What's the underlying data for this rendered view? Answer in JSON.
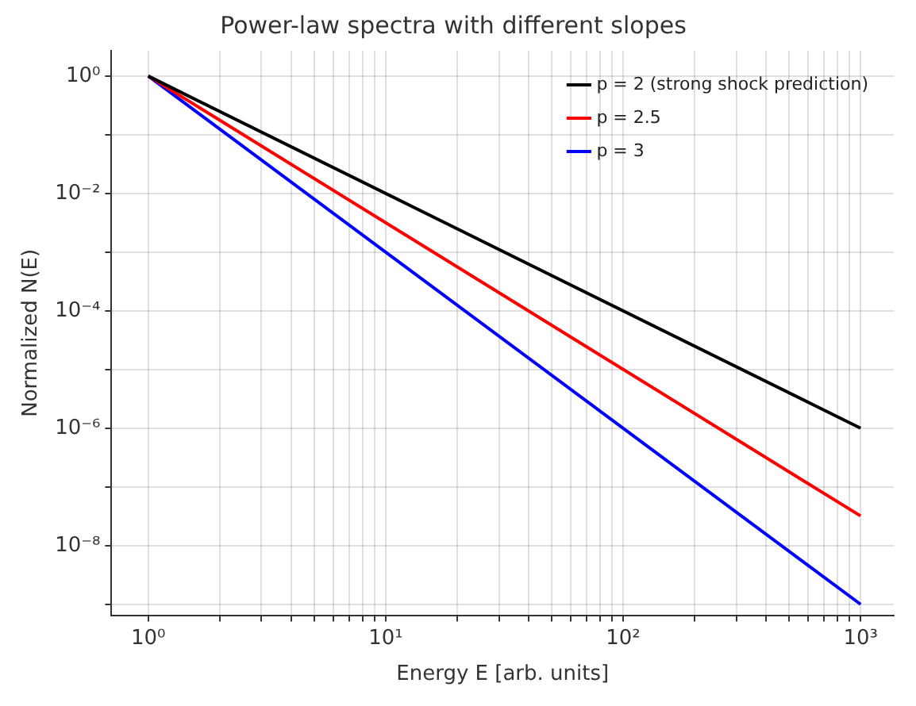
{
  "chart_data": {
    "type": "line",
    "title": "Power-law spectra with different slopes",
    "xlabel": "Energy E [arb. units]",
    "ylabel": "Normalized N(E)",
    "log": "xy",
    "grid": true,
    "legend": "top right",
    "marker": "none",
    "line_style": "solid",
    "xlim": [
      0.7,
      1380
    ],
    "ylim": [
      6.5e-10,
      2.7
    ],
    "xticks": [
      {
        "value": 1,
        "label": "10⁰"
      },
      {
        "value": 2,
        "label": null
      },
      {
        "value": 3,
        "label": null
      },
      {
        "value": 4,
        "label": null
      },
      {
        "value": 5,
        "label": null
      },
      {
        "value": 6,
        "label": null
      },
      {
        "value": 7,
        "label": null
      },
      {
        "value": 8,
        "label": null
      },
      {
        "value": 9,
        "label": null
      },
      {
        "value": 10,
        "label": "10¹"
      },
      {
        "value": 20,
        "label": null
      },
      {
        "value": 30,
        "label": null
      },
      {
        "value": 40,
        "label": null
      },
      {
        "value": 50,
        "label": null
      },
      {
        "value": 60,
        "label": null
      },
      {
        "value": 70,
        "label": null
      },
      {
        "value": 80,
        "label": null
      },
      {
        "value": 90,
        "label": null
      },
      {
        "value": 100,
        "label": "10²"
      },
      {
        "value": 200,
        "label": null
      },
      {
        "value": 300,
        "label": null
      },
      {
        "value": 400,
        "label": null
      },
      {
        "value": 500,
        "label": null
      },
      {
        "value": 600,
        "label": null
      },
      {
        "value": 700,
        "label": null
      },
      {
        "value": 800,
        "label": null
      },
      {
        "value": 900,
        "label": null
      },
      {
        "value": 1000,
        "label": "10³"
      }
    ],
    "yticks": [
      {
        "value": 1,
        "label": "10⁰"
      },
      {
        "value": 0.1,
        "label": null
      },
      {
        "value": 0.01,
        "label": "10⁻²"
      },
      {
        "value": 0.001,
        "label": null
      },
      {
        "value": 0.0001,
        "label": "10⁻⁴"
      },
      {
        "value": 1e-05,
        "label": null
      },
      {
        "value": 1e-06,
        "label": "10⁻⁶"
      },
      {
        "value": 1e-07,
        "label": null
      },
      {
        "value": 1e-08,
        "label": "10⁻⁸"
      },
      {
        "value": 1e-09,
        "label": null
      }
    ],
    "x": [
      1,
      1000
    ],
    "series": [
      {
        "name": "p = 2 (strong shock prediction)",
        "color": "#000000",
        "values": [
          1,
          1e-06
        ]
      },
      {
        "name": "p = 2.5",
        "color": "#ff0000",
        "values": [
          1,
          3.2e-08
        ]
      },
      {
        "name": "p = 3",
        "color": "#0000ff",
        "values": [
          1,
          1e-09
        ]
      }
    ]
  }
}
